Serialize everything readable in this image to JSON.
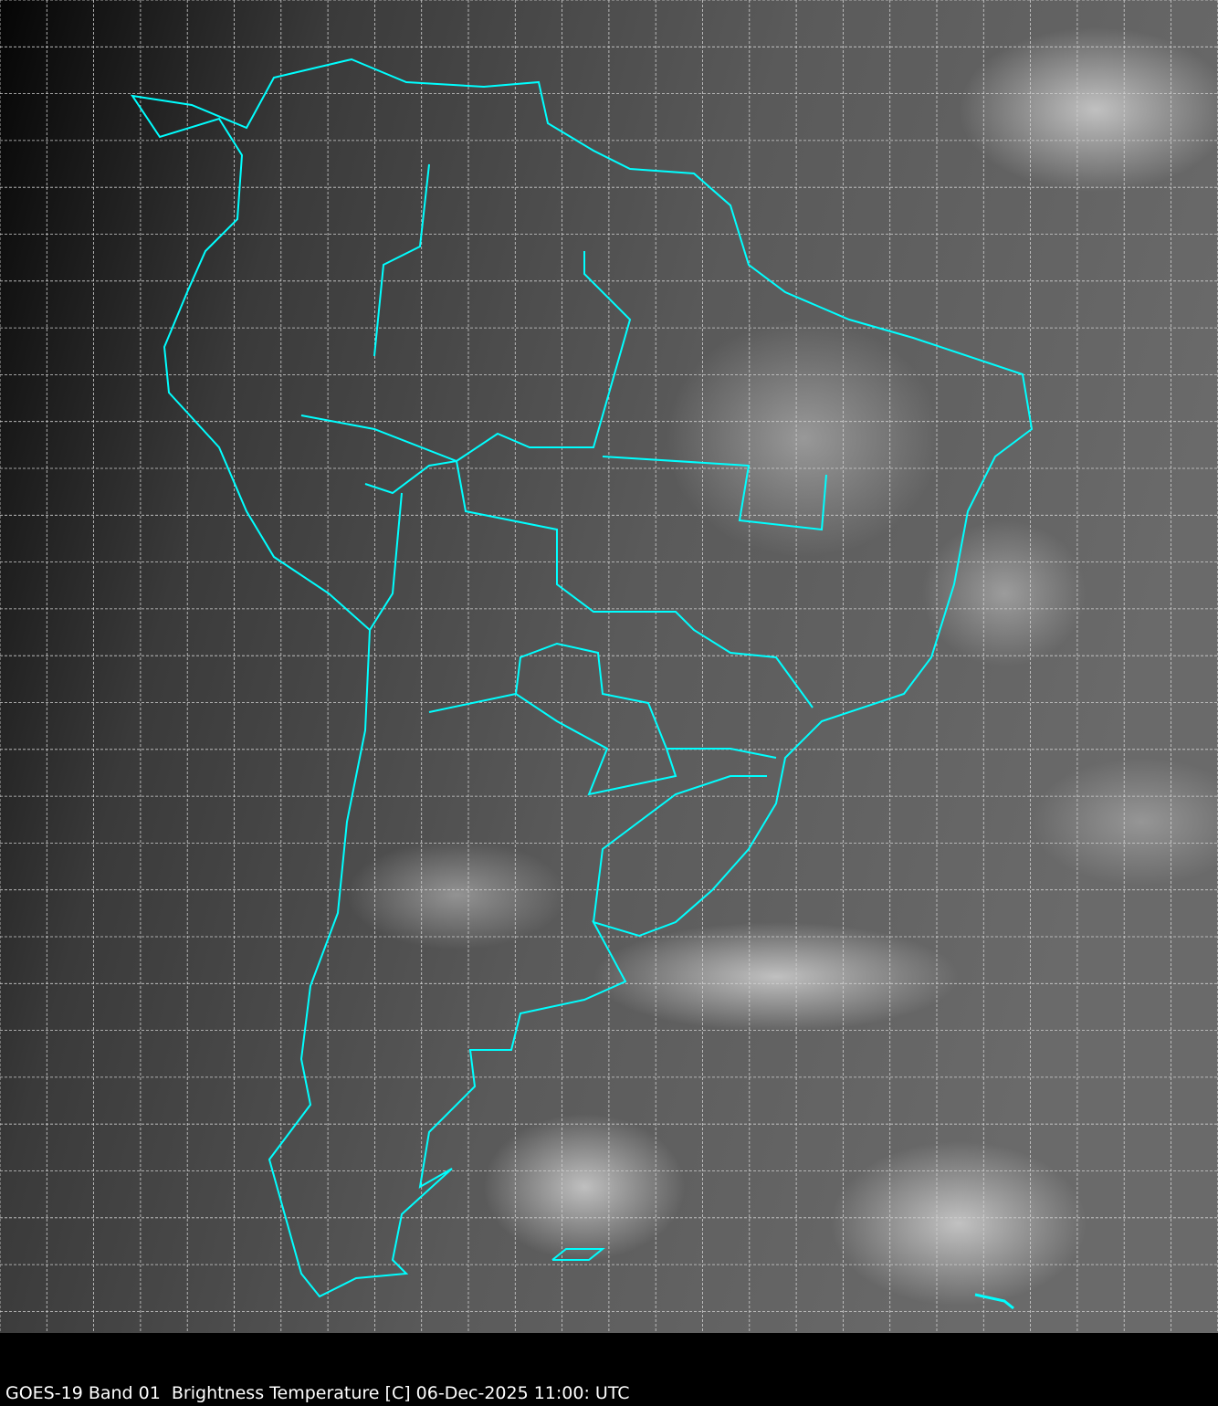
{
  "caption": "GOES-19 Band 01  Brightness Temperature [C] 06-Dec-2025 11:00: UTC",
  "colors": {
    "coastline": "#00ffff",
    "grid": "#d0d0d0",
    "background": "#000000"
  }
}
